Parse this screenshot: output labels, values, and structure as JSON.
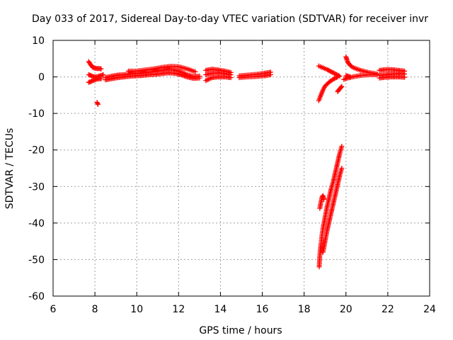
{
  "chart_data": {
    "type": "scatter",
    "title": "Day 033 of 2017, Sidereal Day-to-day VTEC variation (SDTVAR) for receiver invr",
    "xlabel": "GPS time / hours",
    "ylabel": "SDTVAR / TECUs",
    "xlim": [
      6,
      24
    ],
    "ylim": [
      -60,
      10
    ],
    "xticks": [
      6,
      8,
      10,
      12,
      14,
      16,
      18,
      20,
      22,
      24
    ],
    "yticks": [
      10,
      0,
      -10,
      -20,
      -30,
      -40,
      -50,
      -60
    ],
    "grid": true,
    "legend": "none",
    "marker": "plus",
    "color": "#ff0000",
    "segments": [
      {
        "x": [
          7.7,
          7.8,
          7.9,
          8.0,
          8.1,
          8.2,
          8.3
        ],
        "y": [
          4.2,
          3.3,
          2.6,
          2.4,
          2.3,
          2.3,
          2.2
        ]
      },
      {
        "x": [
          7.7,
          7.8,
          7.9,
          8.0,
          8.1,
          8.2,
          8.3
        ],
        "y": [
          -1.5,
          -1.3,
          -1.0,
          -0.8,
          -0.6,
          -0.5,
          -0.5
        ]
      },
      {
        "x": [
          7.7,
          7.8,
          7.9,
          8.0,
          8.1,
          8.2,
          8.3,
          8.4
        ],
        "y": [
          0.6,
          0.4,
          0.1,
          0.0,
          0.0,
          0.2,
          0.4,
          0.6
        ]
      },
      {
        "x": [
          8.1,
          8.15
        ],
        "y": [
          -7.0,
          -7.5
        ]
      },
      {
        "x": [
          8.5,
          8.8,
          9.1,
          9.4,
          9.7,
          10.0,
          10.3,
          10.6,
          10.9,
          11.2,
          11.5,
          11.8,
          12.1,
          12.4,
          12.7,
          13.0
        ],
        "y": [
          -0.2,
          0.2,
          0.5,
          0.6,
          0.8,
          1.0,
          1.0,
          1.3,
          1.5,
          1.8,
          2.0,
          1.9,
          1.4,
          0.6,
          0.1,
          0.2
        ]
      },
      {
        "x": [
          8.5,
          8.8,
          9.1,
          9.4,
          9.7,
          10.0,
          10.3,
          10.6,
          10.9,
          11.2,
          11.5,
          11.8,
          12.1,
          12.4,
          12.7,
          13.0
        ],
        "y": [
          -0.8,
          -0.5,
          -0.2,
          0.0,
          0.2,
          0.3,
          0.4,
          0.6,
          0.7,
          0.9,
          1.1,
          1.0,
          0.6,
          0.0,
          -0.4,
          -0.3
        ]
      },
      {
        "x": [
          9.6,
          10.0,
          10.4,
          10.8,
          11.2,
          11.6,
          12.0,
          12.4,
          12.8
        ],
        "y": [
          1.6,
          1.6,
          1.9,
          2.2,
          2.6,
          2.9,
          2.8,
          2.2,
          1.4
        ]
      },
      {
        "x": [
          13.3,
          13.6,
          13.9,
          14.2,
          14.5
        ],
        "y": [
          0.6,
          1.0,
          1.1,
          0.9,
          0.6
        ]
      },
      {
        "x": [
          13.3,
          13.6,
          13.9,
          14.2,
          14.5
        ],
        "y": [
          -1.0,
          -0.2,
          0.0,
          0.0,
          -0.2
        ]
      },
      {
        "x": [
          13.3,
          13.6,
          13.9,
          14.2,
          14.5
        ],
        "y": [
          1.8,
          2.1,
          1.9,
          1.6,
          1.2
        ]
      },
      {
        "x": [
          14.9,
          15.3,
          15.7,
          16.1,
          16.4
        ],
        "y": [
          0.3,
          0.5,
          0.7,
          1.0,
          1.3
        ]
      },
      {
        "x": [
          14.9,
          15.3,
          15.7,
          16.1,
          16.4
        ],
        "y": [
          -0.2,
          0.0,
          0.1,
          0.3,
          0.6
        ]
      },
      {
        "x": [
          18.7,
          18.9,
          19.1,
          19.3,
          19.5,
          19.7
        ],
        "y": [
          3.0,
          2.5,
          2.0,
          1.4,
          0.8,
          0.2
        ]
      },
      {
        "x": [
          18.7,
          18.8,
          18.9,
          19.0,
          19.2,
          19.4,
          19.6
        ],
        "y": [
          -6.5,
          -5.0,
          -3.6,
          -2.5,
          -1.4,
          -0.6,
          0.0
        ]
      },
      {
        "x": [
          19.6,
          19.7,
          19.8
        ],
        "y": [
          -4.0,
          -3.3,
          -2.6
        ]
      },
      {
        "x": [
          20.0,
          20.05,
          20.1,
          20.2,
          20.3,
          20.5,
          20.7,
          20.9,
          21.1,
          21.3,
          21.5
        ],
        "y": [
          5.5,
          4.6,
          3.9,
          3.2,
          2.7,
          2.2,
          1.8,
          1.5,
          1.2,
          1.0,
          0.8
        ]
      },
      {
        "x": [
          19.9,
          20.1,
          20.3,
          20.5,
          20.7,
          20.9,
          21.1,
          21.3,
          21.5
        ],
        "y": [
          -0.7,
          -0.3,
          0.0,
          0.2,
          0.4,
          0.5,
          0.6,
          0.6,
          0.6
        ]
      },
      {
        "x": [
          20.0,
          20.1,
          20.2
        ],
        "y": [
          0.3,
          0.2,
          0.0
        ]
      },
      {
        "x": [
          21.6,
          21.9,
          22.2,
          22.5,
          22.8
        ],
        "y": [
          1.8,
          2.0,
          2.0,
          1.8,
          1.6
        ]
      },
      {
        "x": [
          21.6,
          21.9,
          22.2,
          22.5,
          22.8
        ],
        "y": [
          0.4,
          0.6,
          0.8,
          0.9,
          0.8
        ]
      },
      {
        "x": [
          21.6,
          21.9,
          22.2,
          22.5,
          22.8
        ],
        "y": [
          -0.3,
          -0.1,
          0.0,
          0.0,
          -0.1
        ]
      },
      {
        "x": [
          18.72,
          18.75,
          18.8,
          18.85,
          18.9,
          19.0,
          19.1,
          19.2,
          19.3,
          19.4,
          19.5,
          19.6,
          19.7,
          19.8
        ],
        "y": [
          -52.0,
          -49.0,
          -46.0,
          -43.5,
          -41.5,
          -38.5,
          -35.5,
          -33.0,
          -30.5,
          -28.5,
          -26.0,
          -23.5,
          -21.0,
          -19.0
        ]
      },
      {
        "x": [
          18.9,
          19.0,
          19.1,
          19.2,
          19.3,
          19.4,
          19.5,
          19.6,
          19.7,
          19.8
        ],
        "y": [
          -48.0,
          -45.0,
          -42.0,
          -39.5,
          -37.0,
          -34.5,
          -32.0,
          -29.5,
          -27.0,
          -25.0
        ]
      },
      {
        "x": [
          18.75,
          18.8,
          18.85,
          18.9,
          18.95
        ],
        "y": [
          -36.0,
          -34.5,
          -33.0,
          -32.5,
          -33.5
        ]
      }
    ]
  }
}
